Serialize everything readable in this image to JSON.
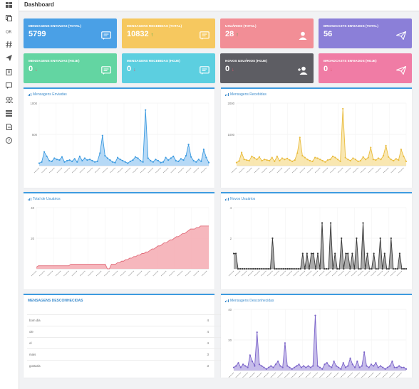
{
  "page": {
    "title": "Dashboard"
  },
  "sidebar": {
    "icons": [
      "dashboard-icon",
      "copy-icon",
      "qrcode-icon",
      "hash-icon",
      "send-icon",
      "contacts-book-icon",
      "message-icon",
      "users-icon",
      "list-icon",
      "document-icon",
      "help-icon"
    ]
  },
  "cards": [
    {
      "label": "MENSAGENS ENVIADAS (TOTAL)",
      "value": "5799",
      "trend": "",
      "color": "#4aa0e6",
      "icon": "message-icon"
    },
    {
      "label": "MENSAGENS RECEBIDAS (TOTAL)",
      "value": "10832",
      "trend": "↑",
      "trend_color": "#2fa84f",
      "color": "#f6c85f",
      "icon": "message-icon"
    },
    {
      "label": "USUÁRIOS (TOTAL)",
      "value": "28",
      "trend": "↑",
      "trend_color": "#2fa84f",
      "color": "#f28e96",
      "icon": "user-icon"
    },
    {
      "label": "BROADCASTS ENVIADOS (TOTAL)",
      "value": "56",
      "trend": "",
      "color": "#8b7fd8",
      "icon": "send-icon"
    },
    {
      "label": "MENSAGENS ENVIADAS (HOJE)",
      "value": "0",
      "trend": "↓",
      "trend_color": "#e0556a",
      "color": "#63d5a2",
      "icon": "message-icon"
    },
    {
      "label": "MENSAGENS RECEBIDAS (HOJE)",
      "value": "0",
      "trend": "↓",
      "trend_color": "#e0556a",
      "color": "#5ccfe0",
      "icon": "message-icon"
    },
    {
      "label": "NOVOS USUÁRIOS (HOJE)",
      "value": "0",
      "trend": "↓",
      "trend_color": "#e0556a",
      "color": "#5d5d63",
      "icon": "add-user-icon"
    },
    {
      "label": "BROADCASTS ENVIADOS (HOJE)",
      "value": "0",
      "trend": "↓",
      "trend_color": "#e0556a",
      "color": "#f07ca5",
      "icon": "send-icon"
    }
  ],
  "panels": {
    "sent": "Mensagens Enviadas",
    "received": "Mensagens Recebidas",
    "total_users": "Total de Usuários",
    "new_users": "Novos Usuários",
    "unknown_list": "MENSAGENS DESCONHECIDAS",
    "unknown_chart": "Mensagens Desconhecidas"
  },
  "unknown_messages": [
    {
      "label": "bom dia",
      "count": "4"
    },
    {
      "label": "oie",
      "count": "4"
    },
    {
      "label": "ol",
      "count": "4"
    },
    {
      "label": "mais",
      "count": "3"
    },
    {
      "label": "gostaria",
      "count": "3"
    }
  ],
  "chart_data": [
    {
      "type": "area",
      "title": "Mensagens Enviadas",
      "ylim": [
        0,
        1000
      ],
      "ytick_labels": [
        "1000",
        "500"
      ],
      "color": "#3d9be0",
      "fill": "#a9d2f4",
      "show_points": true,
      "values": [
        40,
        60,
        220,
        150,
        80,
        70,
        120,
        100,
        90,
        140,
        60,
        80,
        90,
        70,
        110,
        60,
        150,
        80,
        120,
        90,
        100,
        80,
        60,
        70,
        200,
        480,
        160,
        120,
        90,
        60,
        50,
        130,
        100,
        80,
        60,
        40,
        70,
        90,
        140,
        120,
        80,
        60,
        890,
        120,
        80,
        60,
        100,
        80,
        50,
        60,
        130,
        90,
        120,
        150,
        80,
        70,
        110,
        90,
        160,
        340,
        140,
        80,
        60,
        100,
        70,
        260,
        130,
        50
      ]
    },
    {
      "type": "area",
      "title": "Mensagens Recebidas",
      "ylim": [
        0,
        2000
      ],
      "ytick_labels": [
        "2000",
        "1000"
      ],
      "color": "#e9bc3f",
      "fill": "#f8e3a3",
      "show_points": true,
      "values": [
        100,
        150,
        420,
        200,
        180,
        160,
        300,
        250,
        200,
        280,
        160,
        200,
        180,
        160,
        260,
        140,
        300,
        160,
        240,
        200,
        230,
        180,
        140,
        180,
        400,
        900,
        320,
        260,
        200,
        160,
        140,
        260,
        240,
        200,
        160,
        120,
        180,
        200,
        300,
        260,
        200,
        140,
        1820,
        260,
        200,
        160,
        240,
        200,
        140,
        160,
        280,
        200,
        260,
        580,
        200,
        180,
        240,
        200,
        320,
        640,
        280,
        200,
        160,
        220,
        180,
        520,
        300,
        140
      ]
    },
    {
      "type": "area",
      "title": "Total de Usuários",
      "ylim": [
        0,
        40
      ],
      "ytick_labels": [
        "40",
        "20"
      ],
      "color": "#e06b79",
      "fill": "#f4aab1",
      "show_points": false,
      "values": [
        1,
        2,
        2,
        2,
        2,
        2,
        2,
        2,
        2,
        2,
        2,
        2,
        2,
        2,
        2,
        2,
        2,
        3,
        3,
        3,
        3,
        3,
        3,
        3,
        3,
        3,
        3,
        3,
        3,
        3,
        3,
        3,
        3,
        3,
        3,
        0,
        0,
        3,
        3,
        3,
        4,
        4,
        5,
        5,
        6,
        6,
        7,
        7,
        8,
        8,
        9,
        9,
        10,
        10,
        11,
        11,
        12,
        13,
        13,
        14,
        15,
        15,
        16,
        17,
        17,
        18,
        19,
        19,
        20,
        21,
        21,
        22,
        23,
        23,
        24,
        25,
        26,
        26,
        26,
        27,
        27,
        28,
        28,
        28,
        28,
        28
      ]
    },
    {
      "type": "area",
      "title": "Novos Usuários",
      "ylim": [
        0,
        4
      ],
      "ytick_labels": [
        "4",
        "2"
      ],
      "color": "#3a3a3a",
      "fill": "#9b9b9b",
      "show_points": true,
      "values": [
        1,
        1,
        0,
        0,
        0,
        0,
        0,
        0,
        0,
        0,
        0,
        0,
        0,
        0,
        0,
        0,
        0,
        0,
        2,
        0,
        0,
        0,
        0,
        0,
        0,
        0,
        0,
        0,
        0,
        0,
        0,
        0,
        1,
        0,
        1,
        0,
        1,
        1,
        0,
        1,
        0,
        3,
        0,
        0,
        0,
        3,
        0,
        1,
        0,
        0,
        2,
        0,
        1,
        1,
        0,
        1,
        0,
        2,
        0,
        0,
        3,
        0,
        1,
        0,
        0,
        1,
        0,
        0,
        2,
        0,
        1,
        0,
        0,
        2,
        0,
        0,
        0,
        1,
        0,
        0,
        0
      ]
    },
    {
      "type": "area",
      "title": "Mensagens Desconhecidas",
      "ylim": [
        0,
        40
      ],
      "ytick_labels": [
        "40",
        "20"
      ],
      "color": "#7b64c9",
      "fill": "#bcb0e6",
      "show_points": true,
      "values": [
        2,
        3,
        5,
        2,
        4,
        3,
        2,
        10,
        6,
        3,
        25,
        4,
        3,
        2,
        1,
        2,
        3,
        2,
        4,
        6,
        3,
        2,
        18,
        3,
        2,
        1,
        2,
        3,
        4,
        2,
        3,
        2,
        3,
        2,
        3,
        36,
        3,
        2,
        1,
        4,
        5,
        3,
        2,
        6,
        3,
        2,
        1,
        5,
        2,
        3,
        8,
        4,
        2,
        6,
        2,
        3,
        12,
        3,
        2,
        4,
        3,
        5,
        2,
        3,
        2,
        1,
        2,
        3,
        6,
        2,
        2,
        3,
        2,
        2,
        1
      ]
    }
  ]
}
